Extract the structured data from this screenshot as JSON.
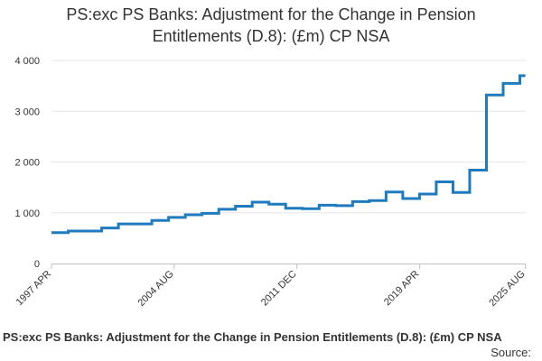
{
  "title_lines": [
    "PS:exc PS Banks: Adjustment for the Change in Pension",
    "Entitlements (D.8): (£m) CP NSA"
  ],
  "footer": {
    "title": "PS:exc PS Banks: Adjustment for the Change in Pension Entitlements (D.8): (£m) CP NSA",
    "source": "Source:"
  },
  "colors": {
    "line": "#1f7bbf",
    "grid": "#e6e6e6",
    "axis": "#c0c0c0",
    "text": "#333333"
  },
  "chart_data": {
    "type": "line",
    "title": "PS:exc PS Banks: Adjustment for the Change in Pension Entitlements (D.8): (£m) CP NSA",
    "xlabel": "",
    "ylabel": "",
    "ylim": [
      0,
      4000
    ],
    "xlim": [
      1997.25,
      2025.6
    ],
    "grid": true,
    "y_ticks": [
      {
        "value": 0,
        "label": "0"
      },
      {
        "value": 1000,
        "label": "1 000"
      },
      {
        "value": 2000,
        "label": "2 000"
      },
      {
        "value": 3000,
        "label": "3 000"
      },
      {
        "value": 4000,
        "label": "4 000"
      }
    ],
    "x_ticks": [
      {
        "value": 1997.25,
        "label": "1997 APR"
      },
      {
        "value": 2004.58,
        "label": "2004 AUG"
      },
      {
        "value": 2011.92,
        "label": "2011 DEC"
      },
      {
        "value": 2019.25,
        "label": "2019 APR"
      },
      {
        "value": 2025.58,
        "label": "2025 AUG"
      }
    ],
    "series": [
      {
        "steps": [
          {
            "x": 1997.25,
            "y": 610
          },
          {
            "x": 1998.25,
            "y": 640
          },
          {
            "x": 2000.25,
            "y": 700
          },
          {
            "x": 2001.25,
            "y": 780
          },
          {
            "x": 2003.25,
            "y": 850
          },
          {
            "x": 2004.25,
            "y": 910
          },
          {
            "x": 2005.25,
            "y": 960
          },
          {
            "x": 2006.25,
            "y": 990
          },
          {
            "x": 2007.25,
            "y": 1070
          },
          {
            "x": 2008.25,
            "y": 1130
          },
          {
            "x": 2009.25,
            "y": 1210
          },
          {
            "x": 2010.25,
            "y": 1170
          },
          {
            "x": 2011.25,
            "y": 1090
          },
          {
            "x": 2012.25,
            "y": 1080
          },
          {
            "x": 2013.25,
            "y": 1150
          },
          {
            "x": 2014.25,
            "y": 1140
          },
          {
            "x": 2015.25,
            "y": 1220
          },
          {
            "x": 2016.25,
            "y": 1240
          },
          {
            "x": 2017.25,
            "y": 1410
          },
          {
            "x": 2018.25,
            "y": 1280
          },
          {
            "x": 2019.25,
            "y": 1370
          },
          {
            "x": 2020.25,
            "y": 1610
          },
          {
            "x": 2021.25,
            "y": 1400
          },
          {
            "x": 2022.25,
            "y": 1840
          },
          {
            "x": 2023.25,
            "y": 3320
          },
          {
            "x": 2024.25,
            "y": 3550
          },
          {
            "x": 2025.25,
            "y": 3700
          }
        ],
        "x_end": 2025.58
      }
    ]
  }
}
